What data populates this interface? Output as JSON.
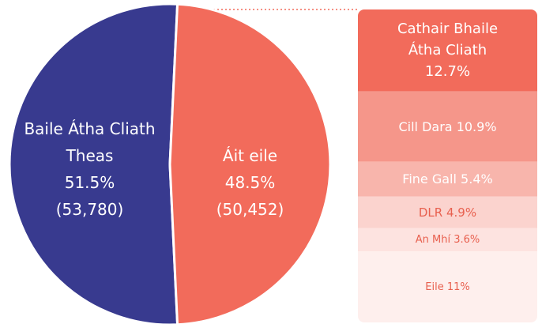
{
  "chart_data": [
    {
      "type": "pie",
      "categories": [
        "Baile Átha Cliath Theas",
        "Áit eile"
      ],
      "values": [
        51.5,
        48.5
      ],
      "value_labels": [
        "51.5%",
        "48.5%"
      ],
      "counts": [
        53780,
        50452
      ],
      "count_labels": [
        "(53,780)",
        "(50,452)"
      ],
      "colors": [
        "#383a8f",
        "#f26b5b"
      ]
    },
    {
      "type": "stacked-bar",
      "categories": [
        "Cathair Bhaile Átha Cliath",
        "Cill Dara",
        "Fine Gall",
        "DLR",
        "An Mhí",
        "Eile"
      ],
      "values": [
        12.7,
        10.9,
        5.4,
        4.9,
        3.6,
        11
      ],
      "value_labels": [
        "12.7%",
        "10.9%",
        "5.4%",
        "4.9%",
        "3.6%",
        "11%"
      ],
      "colors": [
        "#f26b5b",
        "#f5968a",
        "#f8b5ac",
        "#fbd3ce",
        "#fde3e0",
        "#feefed"
      ],
      "label_colors": [
        "#ffffff",
        "#ffffff",
        "#ffffff",
        "#e8604f",
        "#e8604f",
        "#e8604f"
      ]
    }
  ]
}
